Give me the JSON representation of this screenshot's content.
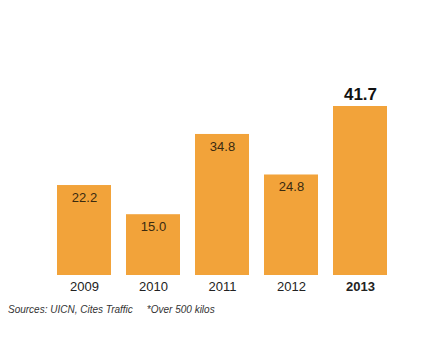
{
  "chart_data": {
    "type": "bar",
    "categories": [
      "2009",
      "2010",
      "2011",
      "2012",
      "2013"
    ],
    "values": [
      22.2,
      15.0,
      34.8,
      24.8,
      41.7
    ],
    "value_labels": [
      "22.2",
      "15.0",
      "34.8",
      "24.8",
      "41.7"
    ],
    "color": "#f2a33a",
    "ylim": [
      0,
      41.7
    ],
    "data_labels": true,
    "tick_labels": "x",
    "grid": false,
    "source": "Sources: UICN, Cites Traffic",
    "note": "*Over 500 kilos"
  }
}
